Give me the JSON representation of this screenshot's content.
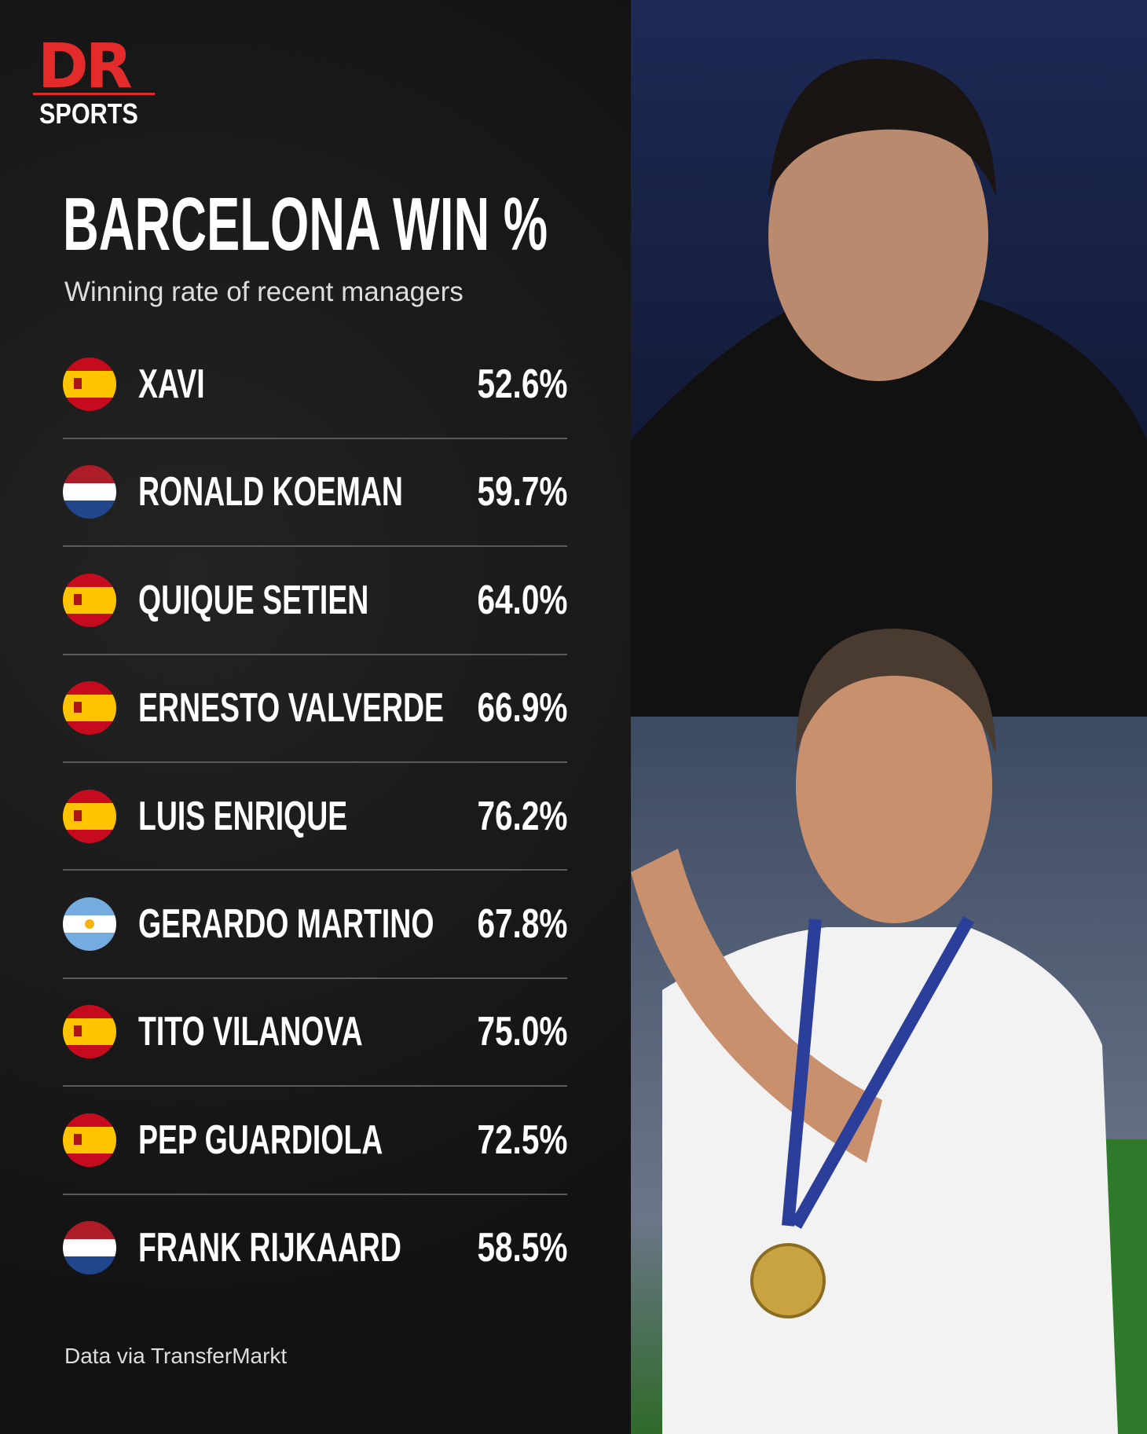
{
  "logo": {
    "text": "DR",
    "subtext": "SPORTS"
  },
  "header": {
    "title": "BARCELONA WIN %",
    "subtitle": "Winning rate of recent managers"
  },
  "table": {
    "rows": [
      [
        "XAVI",
        "52.6%"
      ],
      [
        "RONALD KOEMAN",
        "59.7%"
      ],
      [
        "QUIQUE SETIEN",
        "64.0%"
      ],
      [
        "ERNESTO VALVERDE",
        "66.9%"
      ],
      [
        "LUIS ENRIQUE",
        "76.2%"
      ],
      [
        "GERARDO MARTINO",
        "67.8%"
      ],
      [
        "TITO VILANOVA",
        "75.0%"
      ],
      [
        "PEP GUARDIOLA",
        "72.5%"
      ],
      [
        "FRANK RIJKAARD",
        "58.5%"
      ]
    ]
  },
  "footer": "Data via TransferMarkt"
}
